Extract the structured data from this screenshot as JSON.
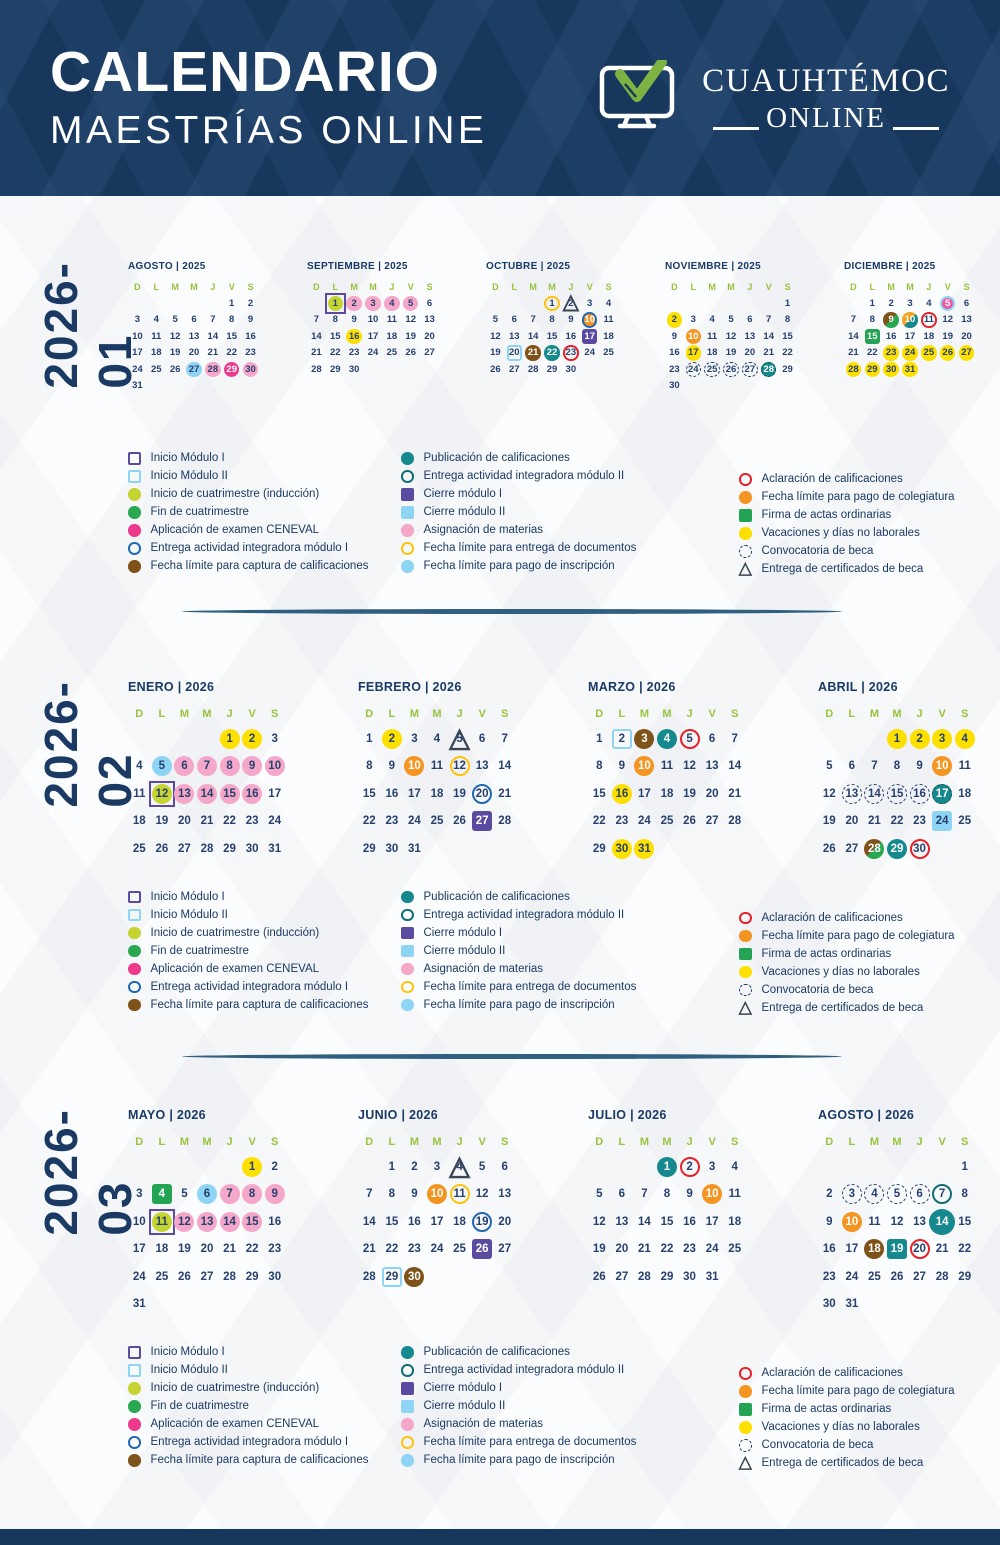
{
  "header": {
    "title_line1": "CALENDARIO",
    "title_line2": "MAESTRÍAS ONLINE",
    "logo_line1": "CUAUHTÉMOC",
    "logo_line2": "ONLINE"
  },
  "colors": {
    "header_bg": "#17375c",
    "title_navy": "#1b3a63",
    "weekday_green": "#9ac23c",
    "logo_green": "#7db343",
    "marker_colors": {
      "lightblue": "#8ed4f4",
      "pink": "#f4a7c9",
      "magenta": "#ee3a8c",
      "yellow": "#fde000",
      "orange": "#f49421",
      "teal": "#15898d",
      "brown": "#7e5218",
      "green": "#2aa851",
      "lime": "#c5d430",
      "purple": "#5b4ba0",
      "blue_ring": "#2168b3",
      "red_ring": "#e62129",
      "yellow_ring": "#fcc40c",
      "dash_navy": "#24406b"
    }
  },
  "weekdays": [
    "D",
    "L",
    "M",
    "M",
    "J",
    "V",
    "S"
  ],
  "legend": {
    "col1": [
      {
        "marker": "sq-po",
        "label": "Inicio Módulo I"
      },
      {
        "marker": "sq-lbo",
        "label": "Inicio Módulo II"
      },
      {
        "marker": "lm",
        "label": "Inicio de cuatrimestre (inducción)"
      },
      {
        "marker": "gn",
        "label": "Fin de cuatrimestre"
      },
      {
        "marker": "mg",
        "label": "Aplicación de examen CENEVAL"
      },
      {
        "marker": "rg-b",
        "label": "Entrega actividad integradora módulo I"
      },
      {
        "marker": "br",
        "label": "Fecha límite para captura de calificaciones"
      }
    ],
    "col2": [
      {
        "marker": "tl",
        "label": "Publicación de calificaciones"
      },
      {
        "marker": "rg-t",
        "label": "Entrega actividad integradora módulo II"
      },
      {
        "marker": "sq-p",
        "label": "Cierre módulo I"
      },
      {
        "marker": "sq-lb",
        "label": "Cierre módulo II"
      },
      {
        "marker": "pk",
        "label": "Asignación de materias"
      },
      {
        "marker": "rg-y",
        "label": "Fecha límite para entrega de documentos"
      },
      {
        "marker": "lb",
        "label": "Fecha límite para pago de inscripción"
      }
    ],
    "col3": [
      {
        "marker": "rg-r",
        "label": "Aclaración de calificaciones"
      },
      {
        "marker": "or",
        "label": "Fecha límite para pago de colegiatura"
      },
      {
        "marker": "sq-g",
        "label": "Firma de actas ordinarias"
      },
      {
        "marker": "yl",
        "label": "Vacaciones y días no laborales"
      },
      {
        "marker": "dash",
        "label": "Convocatoria de beca"
      },
      {
        "marker": "tri",
        "label": "Entrega de certificados de beca"
      }
    ]
  },
  "sections": [
    {
      "label": "2026-01",
      "months": [
        {
          "name": "AGOSTO",
          "year": "2025",
          "start": 5,
          "days": 31,
          "marks": {
            "27": "lb",
            "28": "pk",
            "29": "mg",
            "30": "pk"
          }
        },
        {
          "name": "SEPTIEMBRE",
          "year": "2025",
          "start": 1,
          "days": 30,
          "marks": {
            "1": "lm-psq",
            "2": "pk",
            "3": "pk",
            "4": "pk",
            "5": "pk",
            "16": "yl"
          }
        },
        {
          "name": "OCTUBRE",
          "year": "2025",
          "start": 3,
          "days": 30,
          "marks": {
            "1": "rg-y",
            "2": "tri",
            "10": "or-br",
            "17": "sq-p",
            "20": "sq-lbo",
            "21": "br",
            "22": "tl",
            "23": "rg-r"
          }
        },
        {
          "name": "NOVIEMBRE",
          "year": "2025",
          "start": 6,
          "days": 30,
          "marks": {
            "2": "yl",
            "10": "or",
            "17": "yl",
            "24": "dash",
            "25": "dash",
            "26": "dash",
            "27": "dash",
            "28": "tl-dash"
          }
        },
        {
          "name": "DICIEMBRE",
          "year": "2025",
          "start": 1,
          "days": 31,
          "marks": {
            "5": "mg-lbr",
            "9": "sp-bg",
            "10": "sp-ot",
            "11": "rg-r",
            "15": "sq-g",
            "23": "yl",
            "24": "yl",
            "25": "yl",
            "26": "yl",
            "27": "yl",
            "28": "yl",
            "29": "yl",
            "30": "yl",
            "31": "yl"
          }
        }
      ]
    },
    {
      "label": "2026-02",
      "months": [
        {
          "name": "ENERO",
          "year": "2026",
          "start": 4,
          "days": 31,
          "marks": {
            "1": "yl",
            "2": "yl",
            "5": "lb",
            "6": "pk",
            "7": "pk",
            "8": "pk",
            "9": "pk",
            "10": "pk",
            "12": "lm-psq",
            "13": "pk",
            "14": "pk",
            "15": "pk",
            "16": "pk"
          }
        },
        {
          "name": "FEBRERO",
          "year": "2026",
          "start": 0,
          "days": 31,
          "marks": {
            "2": "yl",
            "5": "tri",
            "10": "or",
            "12": "rg-y",
            "20": "rg-b",
            "27": "sq-p"
          }
        },
        {
          "name": "MARZO",
          "year": "2026",
          "start": 0,
          "days": 31,
          "marks": {
            "2": "sq-lbo",
            "3": "br",
            "4": "tl",
            "5": "rg-r",
            "10": "or",
            "16": "yl",
            "30": "yl",
            "31": "yl"
          }
        },
        {
          "name": "ABRIL",
          "year": "2026",
          "start": 3,
          "days": 30,
          "marks": {
            "1": "yl",
            "2": "yl",
            "3": "yl",
            "4": "yl",
            "10": "or",
            "13": "dash",
            "14": "dash",
            "15": "dash",
            "16": "dash",
            "17": "tl-dash",
            "24": "sq-lb",
            "28": "sp-bg",
            "29": "tl",
            "30": "rg-r"
          }
        }
      ]
    },
    {
      "label": "2026-03",
      "months": [
        {
          "name": "MAYO",
          "year": "2026",
          "start": 5,
          "days": 31,
          "marks": {
            "1": "yl",
            "4": "sq-g",
            "6": "lb",
            "7": "pk",
            "8": "pk",
            "9": "pk",
            "11": "lm-psq",
            "12": "pk",
            "13": "pk",
            "14": "pk",
            "15": "pk"
          }
        },
        {
          "name": "JUNIO",
          "year": "2026",
          "start": 1,
          "days": 30,
          "marks": {
            "4": "tri",
            "10": "or",
            "11": "rg-y",
            "19": "rg-b",
            "26": "sq-p",
            "29": "sq-lbo",
            "30": "br"
          }
        },
        {
          "name": "JULIO",
          "year": "2026",
          "start": 3,
          "days": 31,
          "marks": {
            "1": "tl",
            "2": "rg-r",
            "10": "or"
          }
        },
        {
          "name": "AGOSTO",
          "year": "2026",
          "start": 6,
          "days": 31,
          "marks": {
            "3": "dash",
            "4": "dash",
            "5": "dash",
            "6": "dash",
            "7": "rg-t",
            "10": "or",
            "14": "gn-sqt",
            "18": "br",
            "19": "sq-t",
            "20": "rg-r"
          }
        }
      ]
    }
  ]
}
